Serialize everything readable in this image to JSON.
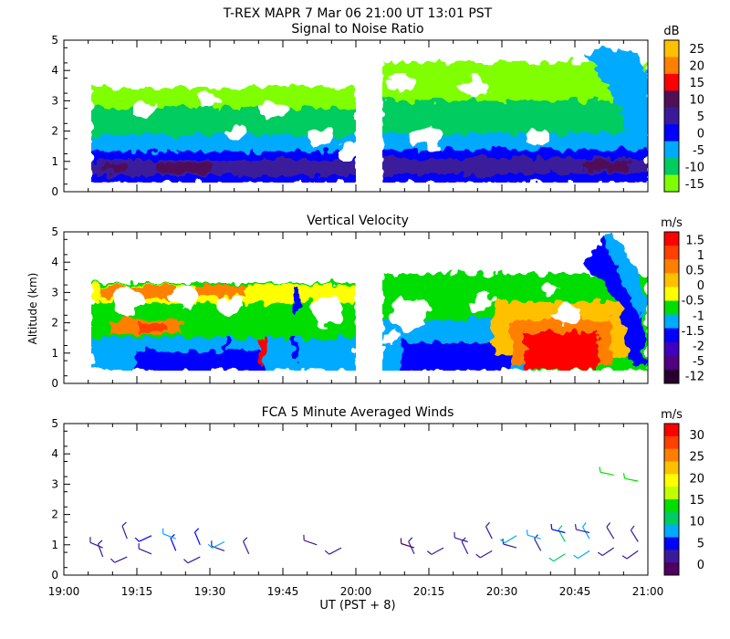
{
  "figure": {
    "title": "T-REX   MAPR   7 Mar 06   21:00 UT   13:01   PST",
    "xlabel": "UT  (PST + 8)",
    "ylabel": "Altitude (km)",
    "x_ticks": [
      "19:00",
      "19:15",
      "19:30",
      "19:45",
      "20:00",
      "20:15",
      "20:30",
      "20:45",
      "21:00"
    ],
    "y_ticks": [
      "0",
      "1",
      "2",
      "3",
      "4",
      "5"
    ]
  },
  "chart_data": [
    {
      "type": "heatmap",
      "title": "Signal to Noise Ratio",
      "unit": "dB",
      "xlim": [
        "19:00",
        "21:00"
      ],
      "ylim": [
        0,
        5
      ],
      "colorbar_ticks": [
        "25",
        "20",
        "15",
        "10",
        "5",
        "0",
        "-5",
        "-10",
        "-15"
      ],
      "colors": [
        "#ffc000",
        "#ff8000",
        "#ff0000",
        "#501058",
        "#3a1a9a",
        "#0000ff",
        "#00aaff",
        "#00cc60",
        "#80ff00"
      ],
      "data_gap": [
        "19:58",
        "20:06"
      ],
      "coverage": [
        0.35,
        3.35
      ]
    },
    {
      "type": "heatmap",
      "title": "Vertical Velocity",
      "unit": "m/s",
      "xlim": [
        "19:00",
        "21:00"
      ],
      "ylim": [
        0,
        5
      ],
      "colorbar_ticks": [
        "1.5",
        "1",
        "0.5",
        "0",
        "-0.5",
        "-1",
        "-1.5",
        "-2",
        "-5",
        "-12"
      ],
      "colors": [
        "#ff0000",
        "#ff4000",
        "#ff8000",
        "#ffc000",
        "#ffff00",
        "#00dd00",
        "#00aaff",
        "#0000ff",
        "#4000c0",
        "#500080",
        "#2a0030"
      ],
      "data_gap": [
        "19:58",
        "20:06"
      ],
      "coverage": [
        0.35,
        3.3
      ]
    },
    {
      "type": "scatter",
      "title": "FCA 5 Minute Averaged Winds",
      "unit": "m/s",
      "xlim": [
        "19:00",
        "21:00"
      ],
      "ylim": [
        0,
        5
      ],
      "colorbar_ticks": [
        "30",
        "25",
        "20",
        "15",
        "10",
        "5",
        "0"
      ],
      "colors": [
        "#ff0000",
        "#ff4000",
        "#ff8000",
        "#ffc000",
        "#ffff00",
        "#c0ff00",
        "#00dd00",
        "#00cc60",
        "#00aaff",
        "#0000ff",
        "#3a1a9a",
        "#500060"
      ],
      "barbs": [
        {
          "t": 8,
          "alt": 0.6,
          "speed": 4
        },
        {
          "t": 8,
          "alt": 0.9,
          "speed": 5
        },
        {
          "t": 13,
          "alt": 0.6,
          "speed": 4
        },
        {
          "t": 13,
          "alt": 1.2,
          "speed": 3
        },
        {
          "t": 18,
          "alt": 0.7,
          "speed": 5
        },
        {
          "t": 18,
          "alt": 1.3,
          "speed": 6
        },
        {
          "t": 23,
          "alt": 0.8,
          "speed": 7
        },
        {
          "t": 23,
          "alt": 1.2,
          "speed": 8
        },
        {
          "t": 28,
          "alt": 0.6,
          "speed": 5
        },
        {
          "t": 28,
          "alt": 1.0,
          "speed": 6
        },
        {
          "t": 33,
          "alt": 0.8,
          "speed": 4
        },
        {
          "t": 33,
          "alt": 1.1,
          "speed": 9
        },
        {
          "t": 38,
          "alt": 0.7,
          "speed": 4
        },
        {
          "t": 52,
          "alt": 1.0,
          "speed": 3
        },
        {
          "t": 57,
          "alt": 0.9,
          "speed": 3
        },
        {
          "t": 72,
          "alt": 0.7,
          "speed": 4
        },
        {
          "t": 72,
          "alt": 0.9,
          "speed": 2
        },
        {
          "t": 78,
          "alt": 0.9,
          "speed": 3
        },
        {
          "t": 83,
          "alt": 0.7,
          "speed": 4
        },
        {
          "t": 83,
          "alt": 1.1,
          "speed": 5
        },
        {
          "t": 88,
          "alt": 0.8,
          "speed": 3
        },
        {
          "t": 88,
          "alt": 1.2,
          "speed": 4
        },
        {
          "t": 93,
          "alt": 0.9,
          "speed": 4
        },
        {
          "t": 93,
          "alt": 1.3,
          "speed": 9
        },
        {
          "t": 98,
          "alt": 0.8,
          "speed": 5
        },
        {
          "t": 98,
          "alt": 1.2,
          "speed": 10
        },
        {
          "t": 103,
          "alt": 0.7,
          "speed": 11
        },
        {
          "t": 103,
          "alt": 1.1,
          "speed": 12
        },
        {
          "t": 103,
          "alt": 1.4,
          "speed": 6
        },
        {
          "t": 108,
          "alt": 0.8,
          "speed": 8
        },
        {
          "t": 108,
          "alt": 1.2,
          "speed": 10
        },
        {
          "t": 108,
          "alt": 1.4,
          "speed": 4
        },
        {
          "t": 113,
          "alt": 0.9,
          "speed": 5
        },
        {
          "t": 113,
          "alt": 1.2,
          "speed": 3
        },
        {
          "t": 113,
          "alt": 3.3,
          "speed": 14
        },
        {
          "t": 118,
          "alt": 0.8,
          "speed": 4
        },
        {
          "t": 118,
          "alt": 1.1,
          "speed": 5
        },
        {
          "t": 118,
          "alt": 3.1,
          "speed": 15
        }
      ]
    }
  ]
}
